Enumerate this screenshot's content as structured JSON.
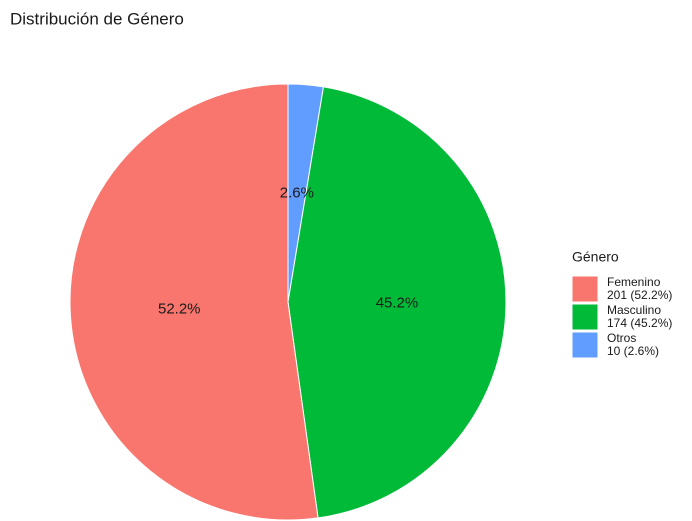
{
  "chart_data": {
    "type": "pie",
    "title": "Distribución de Género",
    "legend_title": "Género",
    "categories": [
      "Femenino",
      "Masculino",
      "Otros"
    ],
    "values": [
      52.2,
      45.2,
      2.6
    ],
    "value_labels": [
      "52.2%",
      "45.2%",
      "2.6%"
    ],
    "legend_labels": [
      "201 (52.2%)",
      "174 (45.2%)",
      "10 (2.6%)"
    ],
    "colors": [
      "#F8766D",
      "#00BA38",
      "#619CFF"
    ],
    "legend_position": "right"
  }
}
